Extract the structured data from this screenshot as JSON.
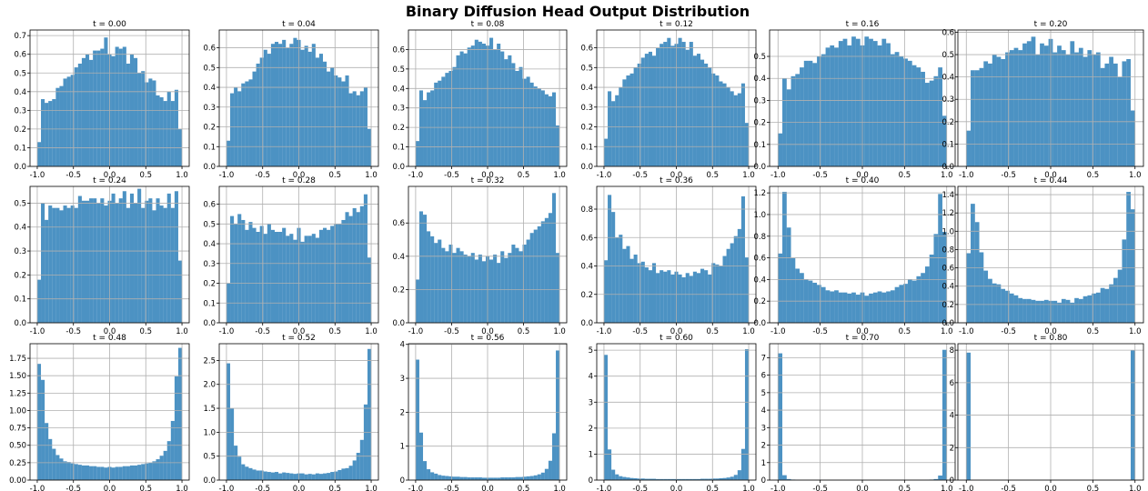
{
  "title": "Binary Diffusion Head Output Distribution",
  "colors": {
    "bar": "#1f77b4",
    "grid": "#b0b0b0",
    "axis": "#000000"
  },
  "chart_data": [
    {
      "type": "bar",
      "title": "t = 0.00",
      "xlim": [
        -1.1,
        1.1
      ],
      "ylim": [
        0,
        0.73
      ],
      "xticks": [
        "-1.0",
        "-0.5",
        "0.0",
        "0.5",
        "1.0"
      ],
      "yticks": [
        "0.0",
        "0.1",
        "0.2",
        "0.3",
        "0.4",
        "0.5",
        "0.6",
        "0.7"
      ],
      "ytick_values": [
        0,
        0.1,
        0.2,
        0.3,
        0.4,
        0.5,
        0.6,
        0.7
      ],
      "grid": true,
      "values": [
        0.13,
        0.36,
        0.34,
        0.35,
        0.36,
        0.42,
        0.43,
        0.47,
        0.48,
        0.49,
        0.53,
        0.55,
        0.58,
        0.6,
        0.57,
        0.62,
        0.62,
        0.63,
        0.69,
        0.6,
        0.59,
        0.64,
        0.63,
        0.64,
        0.55,
        0.6,
        0.58,
        0.5,
        0.51,
        0.45,
        0.47,
        0.46,
        0.38,
        0.37,
        0.35,
        0.4,
        0.35,
        0.41,
        0.2
      ]
    },
    {
      "type": "bar",
      "title": "t = 0.04",
      "xlim": [
        -1.1,
        1.1
      ],
      "ylim": [
        0,
        0.69
      ],
      "xticks": [
        "-1.0",
        "-0.5",
        "0.0",
        "0.5",
        "1.0"
      ],
      "yticks": [
        "0.0",
        "0.1",
        "0.2",
        "0.3",
        "0.4",
        "0.5",
        "0.6"
      ],
      "ytick_values": [
        0,
        0.1,
        0.2,
        0.3,
        0.4,
        0.5,
        0.6
      ],
      "grid": true,
      "values": [
        0.13,
        0.37,
        0.4,
        0.38,
        0.42,
        0.43,
        0.44,
        0.48,
        0.52,
        0.55,
        0.59,
        0.57,
        0.62,
        0.63,
        0.62,
        0.64,
        0.6,
        0.62,
        0.65,
        0.64,
        0.59,
        0.61,
        0.58,
        0.62,
        0.55,
        0.57,
        0.53,
        0.48,
        0.5,
        0.46,
        0.45,
        0.43,
        0.46,
        0.37,
        0.38,
        0.36,
        0.38,
        0.4,
        0.19
      ]
    },
    {
      "type": "bar",
      "title": "t = 0.08",
      "xlim": [
        -1.1,
        1.1
      ],
      "ylim": [
        0,
        0.7
      ],
      "xticks": [
        "-1.0",
        "-0.5",
        "0.0",
        "0.5",
        "1.0"
      ],
      "yticks": [
        "0.0",
        "0.1",
        "0.2",
        "0.3",
        "0.4",
        "0.5",
        "0.6"
      ],
      "ytick_values": [
        0,
        0.1,
        0.2,
        0.3,
        0.4,
        0.5,
        0.6
      ],
      "grid": true,
      "values": [
        0.13,
        0.39,
        0.34,
        0.38,
        0.39,
        0.43,
        0.44,
        0.46,
        0.48,
        0.49,
        0.51,
        0.57,
        0.59,
        0.58,
        0.61,
        0.62,
        0.65,
        0.64,
        0.63,
        0.62,
        0.66,
        0.6,
        0.63,
        0.59,
        0.55,
        0.57,
        0.53,
        0.49,
        0.51,
        0.45,
        0.46,
        0.43,
        0.41,
        0.4,
        0.39,
        0.37,
        0.36,
        0.38,
        0.21
      ]
    },
    {
      "type": "bar",
      "title": "t = 0.12",
      "xlim": [
        -1.1,
        1.1
      ],
      "ylim": [
        0,
        0.69
      ],
      "xticks": [
        "-1.0",
        "-0.5",
        "0.0",
        "0.5",
        "1.0"
      ],
      "yticks": [
        "0.0",
        "0.1",
        "0.2",
        "0.3",
        "0.4",
        "0.5",
        "0.6"
      ],
      "ytick_values": [
        0,
        0.1,
        0.2,
        0.3,
        0.4,
        0.5,
        0.6
      ],
      "grid": true,
      "values": [
        0.14,
        0.38,
        0.33,
        0.36,
        0.4,
        0.44,
        0.46,
        0.47,
        0.5,
        0.52,
        0.55,
        0.57,
        0.58,
        0.56,
        0.6,
        0.62,
        0.63,
        0.65,
        0.61,
        0.62,
        0.65,
        0.63,
        0.59,
        0.63,
        0.56,
        0.57,
        0.54,
        0.52,
        0.5,
        0.47,
        0.46,
        0.43,
        0.42,
        0.4,
        0.38,
        0.36,
        0.37,
        0.42,
        0.22
      ]
    },
    {
      "type": "bar",
      "title": "t = 0.16",
      "xlim": [
        -1.1,
        1.1
      ],
      "ylim": [
        0,
        0.62
      ],
      "xticks": [
        "-1.0",
        "-0.5",
        "0.0",
        "0.5",
        "1.0"
      ],
      "yticks": [
        "0.0",
        "0.1",
        "0.2",
        "0.3",
        "0.4",
        "0.5"
      ],
      "ytick_values": [
        0,
        0.1,
        0.2,
        0.3,
        0.4,
        0.5
      ],
      "grid": true,
      "values": [
        0.15,
        0.4,
        0.35,
        0.41,
        0.42,
        0.45,
        0.48,
        0.48,
        0.47,
        0.5,
        0.51,
        0.54,
        0.55,
        0.54,
        0.57,
        0.58,
        0.55,
        0.59,
        0.58,
        0.55,
        0.59,
        0.58,
        0.57,
        0.55,
        0.58,
        0.56,
        0.51,
        0.52,
        0.5,
        0.49,
        0.48,
        0.46,
        0.45,
        0.43,
        0.38,
        0.39,
        0.41,
        0.45,
        0.23
      ]
    },
    {
      "type": "bar",
      "title": "t = 0.20",
      "xlim": [
        -1.1,
        1.1
      ],
      "ylim": [
        0,
        0.61
      ],
      "xticks": [
        "-1.0",
        "-0.5",
        "0.0",
        "0.5",
        "1.0"
      ],
      "yticks": [
        "0.0",
        "0.1",
        "0.2",
        "0.3",
        "0.4",
        "0.5",
        "0.6"
      ],
      "ytick_values": [
        0,
        0.1,
        0.2,
        0.3,
        0.4,
        0.5,
        0.6
      ],
      "grid": true,
      "values": [
        0.16,
        0.43,
        0.43,
        0.44,
        0.47,
        0.46,
        0.5,
        0.49,
        0.48,
        0.51,
        0.52,
        0.53,
        0.52,
        0.55,
        0.56,
        0.58,
        0.5,
        0.55,
        0.54,
        0.57,
        0.51,
        0.54,
        0.52,
        0.5,
        0.56,
        0.51,
        0.53,
        0.49,
        0.52,
        0.5,
        0.51,
        0.44,
        0.46,
        0.49,
        0.46,
        0.4,
        0.47,
        0.48,
        0.25
      ]
    },
    {
      "type": "bar",
      "title": "t = 0.24",
      "xlim": [
        -1.1,
        1.1
      ],
      "ylim": [
        0,
        0.57
      ],
      "xticks": [
        "-1.0",
        "-0.5",
        "0.0",
        "0.5",
        "1.0"
      ],
      "yticks": [
        "0.0",
        "0.1",
        "0.2",
        "0.3",
        "0.4",
        "0.5"
      ],
      "ytick_values": [
        0,
        0.1,
        0.2,
        0.3,
        0.4,
        0.5
      ],
      "grid": true,
      "values": [
        0.18,
        0.5,
        0.43,
        0.49,
        0.48,
        0.48,
        0.47,
        0.49,
        0.48,
        0.49,
        0.48,
        0.53,
        0.51,
        0.51,
        0.52,
        0.52,
        0.5,
        0.52,
        0.49,
        0.51,
        0.54,
        0.5,
        0.52,
        0.55,
        0.48,
        0.54,
        0.5,
        0.56,
        0.48,
        0.51,
        0.52,
        0.47,
        0.52,
        0.49,
        0.48,
        0.54,
        0.48,
        0.55,
        0.26
      ]
    },
    {
      "type": "bar",
      "title": "t = 0.28",
      "xlim": [
        -1.1,
        1.1
      ],
      "ylim": [
        0,
        0.69
      ],
      "xticks": [
        "-1.0",
        "-0.5",
        "0.0",
        "0.5",
        "1.0"
      ],
      "yticks": [
        "0.0",
        "0.1",
        "0.2",
        "0.3",
        "0.4",
        "0.5",
        "0.6"
      ],
      "ytick_values": [
        0,
        0.1,
        0.2,
        0.3,
        0.4,
        0.5,
        0.6
      ],
      "grid": true,
      "values": [
        0.2,
        0.54,
        0.5,
        0.55,
        0.52,
        0.47,
        0.51,
        0.48,
        0.46,
        0.49,
        0.45,
        0.5,
        0.47,
        0.46,
        0.46,
        0.48,
        0.44,
        0.45,
        0.42,
        0.48,
        0.41,
        0.44,
        0.44,
        0.45,
        0.43,
        0.47,
        0.48,
        0.47,
        0.49,
        0.5,
        0.5,
        0.52,
        0.56,
        0.54,
        0.58,
        0.56,
        0.59,
        0.65,
        0.33
      ]
    },
    {
      "type": "bar",
      "title": "t = 0.32",
      "xlim": [
        -1.1,
        1.1
      ],
      "ylim": [
        0,
        0.82
      ],
      "xticks": [
        "-1.0",
        "-0.5",
        "0.0",
        "0.5",
        "1.0"
      ],
      "yticks": [
        "0.0",
        "0.2",
        "0.4",
        "0.6"
      ],
      "ytick_values": [
        0,
        0.2,
        0.4,
        0.6
      ],
      "grid": true,
      "values": [
        0.26,
        0.67,
        0.65,
        0.55,
        0.52,
        0.48,
        0.5,
        0.45,
        0.43,
        0.47,
        0.42,
        0.45,
        0.43,
        0.41,
        0.4,
        0.42,
        0.38,
        0.41,
        0.37,
        0.4,
        0.38,
        0.41,
        0.36,
        0.43,
        0.39,
        0.42,
        0.47,
        0.45,
        0.43,
        0.47,
        0.5,
        0.54,
        0.56,
        0.58,
        0.61,
        0.63,
        0.66,
        0.78,
        0.42
      ]
    },
    {
      "type": "bar",
      "title": "t = 0.36",
      "xlim": [
        -1.1,
        1.1
      ],
      "ylim": [
        0,
        0.96
      ],
      "xticks": [
        "-1.0",
        "-0.5",
        "0.0",
        "0.5",
        "1.0"
      ],
      "yticks": [
        "0.0",
        "0.2",
        "0.4",
        "0.6",
        "0.8"
      ],
      "ytick_values": [
        0,
        0.2,
        0.4,
        0.6,
        0.8
      ],
      "grid": true,
      "values": [
        0.44,
        0.9,
        0.78,
        0.6,
        0.62,
        0.52,
        0.54,
        0.45,
        0.48,
        0.42,
        0.43,
        0.39,
        0.37,
        0.42,
        0.35,
        0.37,
        0.36,
        0.37,
        0.34,
        0.36,
        0.34,
        0.32,
        0.35,
        0.33,
        0.36,
        0.35,
        0.38,
        0.37,
        0.34,
        0.42,
        0.41,
        0.4,
        0.47,
        0.52,
        0.56,
        0.61,
        0.66,
        0.89,
        0.46
      ]
    },
    {
      "type": "bar",
      "title": "t = 0.40",
      "xlim": [
        -1.1,
        1.1
      ],
      "ylim": [
        0,
        1.26
      ],
      "xticks": [
        "-1.0",
        "-0.5",
        "0.0",
        "0.5",
        "1.0"
      ],
      "yticks": [
        "0.0",
        "0.2",
        "0.4",
        "0.6",
        "0.8",
        "1.0",
        "1.2"
      ],
      "ytick_values": [
        0,
        0.2,
        0.4,
        0.6,
        0.8,
        1.0,
        1.2
      ],
      "grid": true,
      "values": [
        0.64,
        1.21,
        0.88,
        0.6,
        0.5,
        0.46,
        0.4,
        0.39,
        0.37,
        0.35,
        0.33,
        0.3,
        0.29,
        0.3,
        0.28,
        0.28,
        0.27,
        0.28,
        0.26,
        0.28,
        0.25,
        0.27,
        0.28,
        0.29,
        0.28,
        0.29,
        0.3,
        0.33,
        0.35,
        0.36,
        0.4,
        0.39,
        0.43,
        0.46,
        0.52,
        0.63,
        0.82,
        1.19,
        0.84
      ]
    },
    {
      "type": "bar",
      "title": "t = 0.44",
      "xlim": [
        -1.1,
        1.1
      ],
      "ylim": [
        0,
        1.49
      ],
      "xticks": [
        "-1.0",
        "-0.5",
        "0.0",
        "0.5",
        "1.0"
      ],
      "yticks": [
        "0.0",
        "0.2",
        "0.4",
        "0.6",
        "0.8",
        "1.0",
        "1.2",
        "1.4"
      ],
      "ytick_values": [
        0,
        0.2,
        0.4,
        0.6,
        0.8,
        1.0,
        1.2,
        1.4
      ],
      "grid": true,
      "values": [
        0.76,
        1.3,
        1.1,
        0.77,
        0.57,
        0.48,
        0.43,
        0.42,
        0.37,
        0.35,
        0.32,
        0.3,
        0.27,
        0.26,
        0.26,
        0.25,
        0.24,
        0.24,
        0.25,
        0.24,
        0.24,
        0.22,
        0.26,
        0.25,
        0.22,
        0.27,
        0.26,
        0.29,
        0.3,
        0.32,
        0.33,
        0.38,
        0.37,
        0.42,
        0.49,
        0.58,
        0.91,
        1.43,
        1.24
      ]
    },
    {
      "type": "bar",
      "title": "t = 0.48",
      "xlim": [
        -1.1,
        1.1
      ],
      "ylim": [
        0,
        1.96
      ],
      "xticks": [
        "-1.0",
        "-0.5",
        "0.0",
        "0.5",
        "1.0"
      ],
      "yticks": [
        "0.00",
        "0.25",
        "0.50",
        "0.75",
        "1.00",
        "1.25",
        "1.50",
        "1.75"
      ],
      "ytick_values": [
        0,
        0.25,
        0.5,
        0.75,
        1.0,
        1.25,
        1.5,
        1.75
      ],
      "grid": true,
      "values": [
        1.67,
        1.44,
        0.82,
        0.59,
        0.45,
        0.36,
        0.31,
        0.27,
        0.26,
        0.24,
        0.23,
        0.22,
        0.21,
        0.21,
        0.2,
        0.2,
        0.19,
        0.19,
        0.18,
        0.19,
        0.18,
        0.19,
        0.19,
        0.2,
        0.2,
        0.21,
        0.21,
        0.22,
        0.23,
        0.24,
        0.25,
        0.27,
        0.3,
        0.35,
        0.42,
        0.56,
        0.85,
        1.49,
        1.9
      ]
    },
    {
      "type": "bar",
      "title": "t = 0.52",
      "xlim": [
        -1.1,
        1.1
      ],
      "ylim": [
        0,
        2.85
      ],
      "xticks": [
        "-1.0",
        "-0.5",
        "0.0",
        "0.5",
        "1.0"
      ],
      "yticks": [
        "0.0",
        "0.5",
        "1.0",
        "1.5",
        "2.0",
        "2.5"
      ],
      "ytick_values": [
        0,
        0.5,
        1.0,
        1.5,
        2.0,
        2.5
      ],
      "grid": true,
      "values": [
        2.44,
        1.5,
        0.72,
        0.49,
        0.33,
        0.28,
        0.25,
        0.22,
        0.2,
        0.2,
        0.18,
        0.17,
        0.16,
        0.17,
        0.14,
        0.16,
        0.15,
        0.14,
        0.13,
        0.14,
        0.14,
        0.12,
        0.13,
        0.12,
        0.14,
        0.13,
        0.14,
        0.15,
        0.17,
        0.18,
        0.21,
        0.24,
        0.25,
        0.3,
        0.41,
        0.57,
        0.84,
        1.58,
        2.74
      ]
    },
    {
      "type": "bar",
      "title": "t = 0.56",
      "xlim": [
        -1.1,
        1.1
      ],
      "ylim": [
        0,
        4.02
      ],
      "xticks": [
        "-1.0",
        "-0.5",
        "0.0",
        "0.5",
        "1.0"
      ],
      "yticks": [
        "0",
        "1",
        "2",
        "3",
        "4"
      ],
      "ytick_values": [
        0,
        1,
        2,
        3,
        4
      ],
      "grid": true,
      "values": [
        3.55,
        1.4,
        0.56,
        0.32,
        0.23,
        0.19,
        0.15,
        0.13,
        0.12,
        0.11,
        0.1,
        0.1,
        0.09,
        0.09,
        0.08,
        0.08,
        0.08,
        0.08,
        0.07,
        0.07,
        0.07,
        0.07,
        0.07,
        0.08,
        0.08,
        0.08,
        0.08,
        0.09,
        0.09,
        0.1,
        0.11,
        0.12,
        0.14,
        0.17,
        0.22,
        0.33,
        0.57,
        1.38,
        3.82
      ]
    },
    {
      "type": "bar",
      "title": "t = 0.60",
      "xlim": [
        -1.1,
        1.1
      ],
      "ylim": [
        0,
        5.25
      ],
      "xticks": [
        "-1.0",
        "-0.5",
        "0.0",
        "0.5",
        "1.0"
      ],
      "yticks": [
        "0",
        "1",
        "2",
        "3",
        "4",
        "5"
      ],
      "ytick_values": [
        0,
        1,
        2,
        3,
        4,
        5
      ],
      "grid": true,
      "values": [
        4.82,
        1.18,
        0.4,
        0.22,
        0.15,
        0.12,
        0.1,
        0.08,
        0.07,
        0.06,
        0.06,
        0.05,
        0.05,
        0.05,
        0.04,
        0.04,
        0.04,
        0.04,
        0.04,
        0.04,
        0.04,
        0.04,
        0.04,
        0.04,
        0.04,
        0.04,
        0.05,
        0.05,
        0.05,
        0.06,
        0.06,
        0.07,
        0.08,
        0.1,
        0.13,
        0.2,
        0.38,
        1.2,
        5.04
      ]
    },
    {
      "type": "bar",
      "title": "t = 0.70",
      "xlim": [
        -1.1,
        1.1
      ],
      "ylim": [
        0,
        7.8
      ],
      "xticks": [
        "-1.0",
        "-0.5",
        "0.0",
        "0.5",
        "1.0"
      ],
      "yticks": [
        "0",
        "1",
        "2",
        "3",
        "4",
        "5",
        "6",
        "7"
      ],
      "ytick_values": [
        0,
        1,
        2,
        3,
        4,
        5,
        6,
        7
      ],
      "grid": true,
      "values": [
        7.25,
        0.28,
        0.06,
        0.03,
        0.02,
        0.01,
        0.01,
        0.01,
        0.01,
        0.01,
        0.01,
        0.01,
        0.01,
        0.01,
        0.01,
        0.01,
        0.01,
        0.01,
        0.01,
        0.01,
        0.01,
        0.01,
        0.01,
        0.01,
        0.01,
        0.01,
        0.01,
        0.01,
        0.01,
        0.01,
        0.01,
        0.01,
        0.01,
        0.01,
        0.02,
        0.03,
        0.06,
        0.26,
        7.45
      ]
    },
    {
      "type": "bar",
      "title": "t = 0.80",
      "xlim": [
        -1.1,
        1.1
      ],
      "ylim": [
        0,
        8.4
      ],
      "xticks": [
        "-1.0",
        "-0.5",
        "0.0",
        "0.5",
        "1.0"
      ],
      "yticks": [
        "0",
        "2",
        "4",
        "6",
        "8"
      ],
      "ytick_values": [
        0,
        2,
        4,
        6,
        8
      ],
      "grid": true,
      "values": [
        7.85,
        0,
        0,
        0,
        0,
        0,
        0,
        0,
        0,
        0,
        0,
        0,
        0,
        0,
        0,
        0,
        0,
        0,
        0,
        0,
        0,
        0,
        0,
        0,
        0,
        0,
        0,
        0,
        0,
        0,
        0,
        0,
        0,
        0,
        0,
        0,
        0,
        0,
        8.0
      ]
    }
  ]
}
